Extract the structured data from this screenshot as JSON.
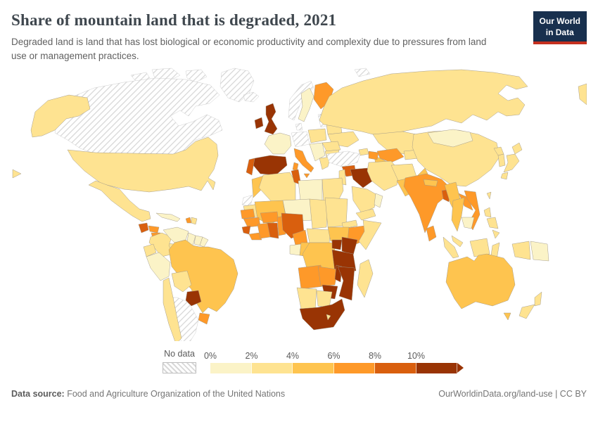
{
  "header": {
    "title": "Share of mountain land that is degraded, 2021",
    "subtitle": "Degraded land is land that has lost biological or economic productivity and complexity due to pressures from land use or management practices.",
    "logo": {
      "line1": "Our World",
      "line2": "in Data",
      "bg": "#18304e",
      "underline": "#c5301f"
    }
  },
  "legend": {
    "no_data_label": "No data"
  },
  "footer": {
    "source_label": "Data source:",
    "source_value": "Food and Agriculture Organization of the United Nations",
    "right_text": "OurWorldinData.org/land-use | CC BY"
  },
  "chart_data": {
    "type": "choropleth-map",
    "title": "Share of mountain land that is degraded",
    "year": "2021",
    "unit": "%",
    "legend_position": "bottom",
    "no_data_style": "diagonal-hatch",
    "bins": [
      {
        "label": "0%",
        "range": "0-2%",
        "color": "#fbf3c7"
      },
      {
        "label": "2%",
        "range": "2-4%",
        "color": "#fee391"
      },
      {
        "label": "4%",
        "range": "4-6%",
        "color": "#fec44f"
      },
      {
        "label": "6%",
        "range": "6-8%",
        "color": "#fe9929"
      },
      {
        "label": "8%",
        "range": "8-10%",
        "color": "#d95f0e"
      },
      {
        "label": "10%",
        "range": "10%+",
        "color": "#993404"
      }
    ],
    "countries": [
      {
        "id": "canada",
        "name": "Canada",
        "bin": "no-data"
      },
      {
        "id": "greenland",
        "name": "Greenland",
        "bin": "no-data"
      },
      {
        "id": "arctic-islands",
        "name": "Arctic islands",
        "bin": "no-data"
      },
      {
        "id": "iceland",
        "name": "Iceland",
        "bin": "no-data"
      },
      {
        "id": "norway",
        "name": "Norway",
        "bin": "no-data"
      },
      {
        "id": "denmark",
        "name": "Denmark",
        "bin": "no-data"
      },
      {
        "id": "germany",
        "name": "Germany",
        "bin": "no-data"
      },
      {
        "id": "baltic-states",
        "name": "Baltic states",
        "bin": "no-data"
      },
      {
        "id": "turkey",
        "name": "Turkey",
        "bin": "no-data"
      },
      {
        "id": "argentina",
        "name": "Argentina",
        "bin": "no-data"
      },
      {
        "id": "western-sahara",
        "name": "Western Sahara",
        "bin": "no-data"
      },
      {
        "id": "mongolia",
        "name": "Mongolia",
        "bin": 0
      },
      {
        "id": "france",
        "name": "France",
        "bin": 0
      },
      {
        "id": "sweden",
        "name": "Sweden",
        "bin": 0
      },
      {
        "id": "libya",
        "name": "Libya",
        "bin": 0
      },
      {
        "id": "niger",
        "name": "Niger",
        "bin": 0
      },
      {
        "id": "oman",
        "name": "Oman",
        "bin": 0
      },
      {
        "id": "cambodia",
        "name": "Cambodia",
        "bin": 0
      },
      {
        "id": "cuba",
        "name": "Cuba",
        "bin": 0
      },
      {
        "id": "peru",
        "name": "Peru",
        "bin": 0
      },
      {
        "id": "venezuela",
        "name": "Venezuela",
        "bin": 0
      },
      {
        "id": "guyana",
        "name": "Guyana",
        "bin": 0
      },
      {
        "id": "suriname",
        "name": "Suriname",
        "bin": 0
      },
      {
        "id": "french-guiana",
        "name": "French Guiana",
        "bin": 0
      },
      {
        "id": "papua-new-guinea",
        "name": "Papua New Guinea",
        "bin": 0
      },
      {
        "id": "gabon",
        "name": "Gabon",
        "bin": 0
      },
      {
        "id": "balkans",
        "name": "Balkans",
        "bin": 0
      },
      {
        "id": "united-states",
        "name": "United States",
        "bin": 1
      },
      {
        "id": "mexico",
        "name": "Mexico",
        "bin": 1
      },
      {
        "id": "russia",
        "name": "Russia",
        "bin": 1
      },
      {
        "id": "china",
        "name": "China",
        "bin": 1
      },
      {
        "id": "kazakhstan",
        "name": "Kazakhstan",
        "bin": 1
      },
      {
        "id": "iran",
        "name": "Iran",
        "bin": 1
      },
      {
        "id": "saudi-arabia",
        "name": "Saudi Arabia",
        "bin": 1
      },
      {
        "id": "yemen",
        "name": "Yemen",
        "bin": 1
      },
      {
        "id": "jordan",
        "name": "Jordan",
        "bin": 1
      },
      {
        "id": "afghanistan",
        "name": "Afghanistan",
        "bin": 1
      },
      {
        "id": "japan",
        "name": "Japan",
        "bin": 1
      },
      {
        "id": "south-korea",
        "name": "South Korea",
        "bin": 1
      },
      {
        "id": "north-korea",
        "name": "North Korea",
        "bin": 1
      },
      {
        "id": "indonesia",
        "name": "Indonesia",
        "bin": 1
      },
      {
        "id": "malaysia",
        "name": "Malaysia",
        "bin": 1
      },
      {
        "id": "philippines",
        "name": "Philippines",
        "bin": 1
      },
      {
        "id": "taiwan",
        "name": "Taiwan",
        "bin": 1
      },
      {
        "id": "poland",
        "name": "Poland",
        "bin": 1
      },
      {
        "id": "belarus",
        "name": "Belarus",
        "bin": 1
      },
      {
        "id": "ukraine",
        "name": "Ukraine",
        "bin": 1
      },
      {
        "id": "romania",
        "name": "Romania",
        "bin": 1
      },
      {
        "id": "bulgaria",
        "name": "Bulgaria",
        "bin": 1
      },
      {
        "id": "greece",
        "name": "Greece",
        "bin": 1
      },
      {
        "id": "sudan",
        "name": "Sudan",
        "bin": 1
      },
      {
        "id": "chad",
        "name": "Chad",
        "bin": 1
      },
      {
        "id": "eritrea",
        "name": "Eritrea",
        "bin": 1
      },
      {
        "id": "somalia",
        "name": "Somalia",
        "bin": 1
      },
      {
        "id": "namibia",
        "name": "Namibia",
        "bin": 1
      },
      {
        "id": "botswana",
        "name": "Botswana",
        "bin": 1
      },
      {
        "id": "madagascar",
        "name": "Madagascar",
        "bin": 1
      },
      {
        "id": "bolivia",
        "name": "Bolivia",
        "bin": 1
      },
      {
        "id": "colombia",
        "name": "Colombia",
        "bin": 1
      },
      {
        "id": "ecuador",
        "name": "Ecuador",
        "bin": 1
      },
      {
        "id": "chile",
        "name": "Chile",
        "bin": 1
      },
      {
        "id": "algeria",
        "name": "Algeria",
        "bin": 1
      },
      {
        "id": "egypt",
        "name": "Egypt",
        "bin": 1
      },
      {
        "id": "mauritania",
        "name": "Mauritania",
        "bin": 1
      },
      {
        "id": "central-african-republic",
        "name": "Central African Republic",
        "bin": 1
      },
      {
        "id": "kyrgyzstan",
        "name": "Kyrgyzstan",
        "bin": 1
      },
      {
        "id": "georgia",
        "name": "Georgia",
        "bin": 1
      },
      {
        "id": "lesotho",
        "name": "Lesotho",
        "bin": 1
      },
      {
        "id": "new-zealand",
        "name": "New Zealand",
        "bin": 1
      },
      {
        "id": "dominican-republic",
        "name": "Dominican Republic",
        "bin": 1
      },
      {
        "id": "costa-rica",
        "name": "Costa Rica",
        "bin": 1
      },
      {
        "id": "panama",
        "name": "Panama",
        "bin": 1
      },
      {
        "id": "brazil",
        "name": "Brazil",
        "bin": 2
      },
      {
        "id": "australia",
        "name": "Australia",
        "bin": 2
      },
      {
        "id": "pakistan",
        "name": "Pakistan",
        "bin": 2
      },
      {
        "id": "myanmar",
        "name": "Myanmar",
        "bin": 2
      },
      {
        "id": "thailand",
        "name": "Thailand",
        "bin": 2
      },
      {
        "id": "dr-congo",
        "name": "Democratic Republic of Congo",
        "bin": 2
      },
      {
        "id": "congo",
        "name": "Congo",
        "bin": 2
      },
      {
        "id": "turkmenistan",
        "name": "Turkmenistan",
        "bin": 2
      },
      {
        "id": "mali",
        "name": "Mali",
        "bin": 2
      },
      {
        "id": "morocco",
        "name": "Morocco",
        "bin": 2
      },
      {
        "id": "south-sudan",
        "name": "South Sudan",
        "bin": 2
      },
      {
        "id": "nepal",
        "name": "Nepal",
        "bin": 2
      },
      {
        "id": "finland",
        "name": "Finland",
        "bin": 3
      },
      {
        "id": "italy",
        "name": "Italy",
        "bin": 3
      },
      {
        "id": "india",
        "name": "India",
        "bin": 3
      },
      {
        "id": "laos",
        "name": "Laos",
        "bin": 3
      },
      {
        "id": "vietnam",
        "name": "Vietnam",
        "bin": 3
      },
      {
        "id": "sri-lanka",
        "name": "Sri Lanka",
        "bin": 3
      },
      {
        "id": "uzbekistan",
        "name": "Uzbekistan",
        "bin": 3
      },
      {
        "id": "ethiopia",
        "name": "Ethiopia",
        "bin": 3
      },
      {
        "id": "angola",
        "name": "Angola",
        "bin": 3
      },
      {
        "id": "zambia",
        "name": "Zambia",
        "bin": 3
      },
      {
        "id": "cameroon",
        "name": "Cameroon",
        "bin": 3
      },
      {
        "id": "guinea",
        "name": "Guinea",
        "bin": 3
      },
      {
        "id": "ivory-coast",
        "name": "Cote d'Ivoire",
        "bin": 3
      },
      {
        "id": "burkina-faso",
        "name": "Burkina Faso",
        "bin": 3
      },
      {
        "id": "benin",
        "name": "Benin",
        "bin": 3
      },
      {
        "id": "liberia",
        "name": "Liberia",
        "bin": 3
      },
      {
        "id": "senegal",
        "name": "Senegal",
        "bin": 3
      },
      {
        "id": "honduras",
        "name": "Honduras",
        "bin": 3
      },
      {
        "id": "nicaragua",
        "name": "Nicaragua",
        "bin": 3
      },
      {
        "id": "uruguay",
        "name": "Uruguay",
        "bin": 3
      },
      {
        "id": "azerbaijan",
        "name": "Azerbaijan",
        "bin": 3
      },
      {
        "id": "haiti",
        "name": "Haiti",
        "bin": 3
      },
      {
        "id": "nigeria",
        "name": "Nigeria",
        "bin": 4
      },
      {
        "id": "ghana",
        "name": "Ghana",
        "bin": 4
      },
      {
        "id": "sierra-leone",
        "name": "Sierra Leone",
        "bin": 4
      },
      {
        "id": "portugal",
        "name": "Portugal",
        "bin": 4
      },
      {
        "id": "syria",
        "name": "Syria",
        "bin": 4
      },
      {
        "id": "tunisia",
        "name": "Tunisia",
        "bin": 4
      },
      {
        "id": "guatemala",
        "name": "Guatemala",
        "bin": 4
      },
      {
        "id": "bangladesh",
        "name": "Bangladesh",
        "bin": 4
      },
      {
        "id": "united-kingdom",
        "name": "United Kingdom",
        "bin": 5
      },
      {
        "id": "ireland",
        "name": "Ireland",
        "bin": 5
      },
      {
        "id": "spain",
        "name": "Spain",
        "bin": 5
      },
      {
        "id": "iraq",
        "name": "Iraq",
        "bin": 5
      },
      {
        "id": "paraguay",
        "name": "Paraguay",
        "bin": 5
      },
      {
        "id": "uganda",
        "name": "Uganda",
        "bin": 5
      },
      {
        "id": "kenya",
        "name": "Kenya",
        "bin": 5
      },
      {
        "id": "tanzania",
        "name": "Tanzania",
        "bin": 5
      },
      {
        "id": "mozambique",
        "name": "Mozambique",
        "bin": 5
      },
      {
        "id": "zimbabwe",
        "name": "Zimbabwe",
        "bin": 5
      },
      {
        "id": "malawi",
        "name": "Malawi",
        "bin": 5
      },
      {
        "id": "south-africa",
        "name": "South Africa",
        "bin": 5
      }
    ]
  }
}
